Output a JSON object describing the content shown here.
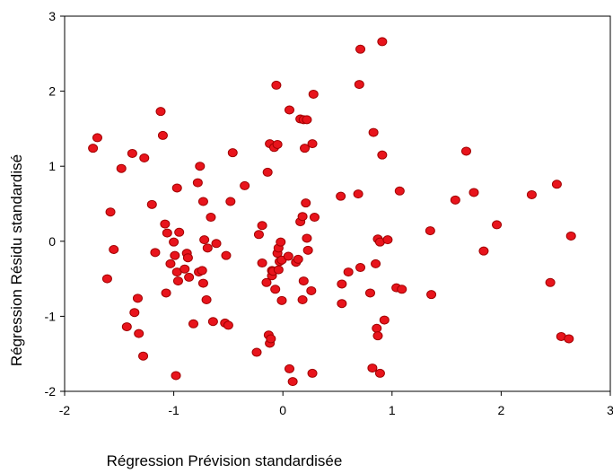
{
  "chart_data": {
    "type": "scatter",
    "xlabel": "Régression Prévision standardisée",
    "ylabel": "Régression Résidu standardisé",
    "xlim": [
      -2,
      3
    ],
    "ylim": [
      -2,
      3
    ],
    "xticks": [
      "-2",
      "-1",
      "0",
      "1",
      "2",
      "3"
    ],
    "yticks": [
      "-2",
      "-1",
      "0",
      "1",
      "2",
      "3"
    ],
    "grid": false,
    "marker_color": "#e8141c",
    "marker_edge_color": "#a00000",
    "points": [
      [
        -1.74,
        1.24
      ],
      [
        -1.7,
        1.38
      ],
      [
        -1.61,
        -0.5
      ],
      [
        -1.58,
        0.39
      ],
      [
        -1.55,
        -0.11
      ],
      [
        -1.48,
        0.97
      ],
      [
        -1.43,
        -1.14
      ],
      [
        -1.38,
        1.17
      ],
      [
        -1.36,
        -0.95
      ],
      [
        -1.33,
        -0.76
      ],
      [
        -1.32,
        -1.23
      ],
      [
        -1.28,
        -1.53
      ],
      [
        -1.27,
        1.11
      ],
      [
        -1.2,
        0.49
      ],
      [
        -1.17,
        -0.15
      ],
      [
        -1.12,
        1.73
      ],
      [
        -1.1,
        1.41
      ],
      [
        -1.08,
        0.23
      ],
      [
        -1.07,
        -0.69
      ],
      [
        -1.06,
        0.11
      ],
      [
        -1.03,
        -0.3
      ],
      [
        -1.0,
        -0.01
      ],
      [
        -0.99,
        -0.19
      ],
      [
        -0.98,
        -1.79
      ],
      [
        -0.97,
        -0.41
      ],
      [
        -0.97,
        0.71
      ],
      [
        -0.96,
        -0.53
      ],
      [
        -0.95,
        0.12
      ],
      [
        -0.9,
        -0.37
      ],
      [
        -0.88,
        -0.16
      ],
      [
        -0.87,
        -0.22
      ],
      [
        -0.86,
        -0.48
      ],
      [
        -0.82,
        -1.1
      ],
      [
        -0.78,
        0.78
      ],
      [
        -0.77,
        -0.41
      ],
      [
        -0.76,
        1.0
      ],
      [
        -0.74,
        -0.39
      ],
      [
        -0.73,
        -0.56
      ],
      [
        -0.73,
        0.53
      ],
      [
        -0.72,
        0.02
      ],
      [
        -0.7,
        -0.78
      ],
      [
        -0.69,
        -0.09
      ],
      [
        -0.66,
        0.32
      ],
      [
        -0.64,
        -1.07
      ],
      [
        -0.61,
        -0.03
      ],
      [
        -0.53,
        -1.09
      ],
      [
        -0.52,
        -0.19
      ],
      [
        -0.5,
        -1.12
      ],
      [
        -0.48,
        0.53
      ],
      [
        -0.46,
        1.18
      ],
      [
        -0.35,
        0.74
      ],
      [
        -0.24,
        -1.48
      ],
      [
        -0.22,
        0.09
      ],
      [
        -0.19,
        0.21
      ],
      [
        -0.19,
        -0.29
      ],
      [
        -0.15,
        -0.55
      ],
      [
        -0.14,
        0.92
      ],
      [
        -0.13,
        -1.25
      ],
      [
        -0.12,
        -1.36
      ],
      [
        -0.12,
        1.3
      ],
      [
        -0.11,
        -1.3
      ],
      [
        -0.1,
        -0.46
      ],
      [
        -0.1,
        -0.39
      ],
      [
        -0.09,
        -0.4
      ],
      [
        -0.08,
        1.25
      ],
      [
        -0.07,
        -0.64
      ],
      [
        -0.06,
        2.08
      ],
      [
        -0.05,
        -0.16
      ],
      [
        -0.05,
        1.29
      ],
      [
        -0.04,
        -0.38
      ],
      [
        -0.04,
        -0.09
      ],
      [
        -0.03,
        -0.27
      ],
      [
        -0.02,
        -0.01
      ],
      [
        -0.01,
        -0.79
      ],
      [
        -0.01,
        -0.25
      ],
      [
        0.05,
        -0.2
      ],
      [
        0.06,
        1.75
      ],
      [
        0.06,
        -1.7
      ],
      [
        0.09,
        -1.87
      ],
      [
        0.12,
        -0.28
      ],
      [
        0.14,
        -0.24
      ],
      [
        0.16,
        0.26
      ],
      [
        0.16,
        1.63
      ],
      [
        0.18,
        0.33
      ],
      [
        0.18,
        -0.78
      ],
      [
        0.19,
        1.62
      ],
      [
        0.19,
        -0.53
      ],
      [
        0.2,
        1.24
      ],
      [
        0.21,
        0.51
      ],
      [
        0.22,
        1.62
      ],
      [
        0.22,
        0.04
      ],
      [
        0.23,
        -0.12
      ],
      [
        0.26,
        -0.66
      ],
      [
        0.27,
        -1.76
      ],
      [
        0.27,
        1.3
      ],
      [
        0.28,
        1.96
      ],
      [
        0.29,
        0.32
      ],
      [
        0.53,
        0.6
      ],
      [
        0.54,
        -0.57
      ],
      [
        0.54,
        -0.83
      ],
      [
        0.6,
        -0.41
      ],
      [
        0.69,
        0.63
      ],
      [
        0.7,
        2.09
      ],
      [
        0.71,
        2.56
      ],
      [
        0.71,
        -0.35
      ],
      [
        0.8,
        -0.69
      ],
      [
        0.82,
        -1.69
      ],
      [
        0.83,
        1.45
      ],
      [
        0.85,
        -0.3
      ],
      [
        0.86,
        -1.16
      ],
      [
        0.87,
        -1.26
      ],
      [
        0.87,
        0.03
      ],
      [
        0.89,
        -1.76
      ],
      [
        0.89,
        -0.01
      ],
      [
        0.91,
        1.15
      ],
      [
        0.91,
        2.66
      ],
      [
        0.93,
        -1.05
      ],
      [
        0.96,
        0.02
      ],
      [
        1.04,
        -0.62
      ],
      [
        1.07,
        0.67
      ],
      [
        1.09,
        -0.64
      ],
      [
        1.35,
        0.14
      ],
      [
        1.36,
        -0.71
      ],
      [
        1.58,
        0.55
      ],
      [
        1.68,
        1.2
      ],
      [
        1.75,
        0.65
      ],
      [
        1.84,
        -0.13
      ],
      [
        1.96,
        0.22
      ],
      [
        2.28,
        0.62
      ],
      [
        2.45,
        -0.55
      ],
      [
        2.51,
        0.76
      ],
      [
        2.55,
        -1.27
      ],
      [
        2.62,
        -1.3
      ],
      [
        2.64,
        0.07
      ]
    ]
  }
}
